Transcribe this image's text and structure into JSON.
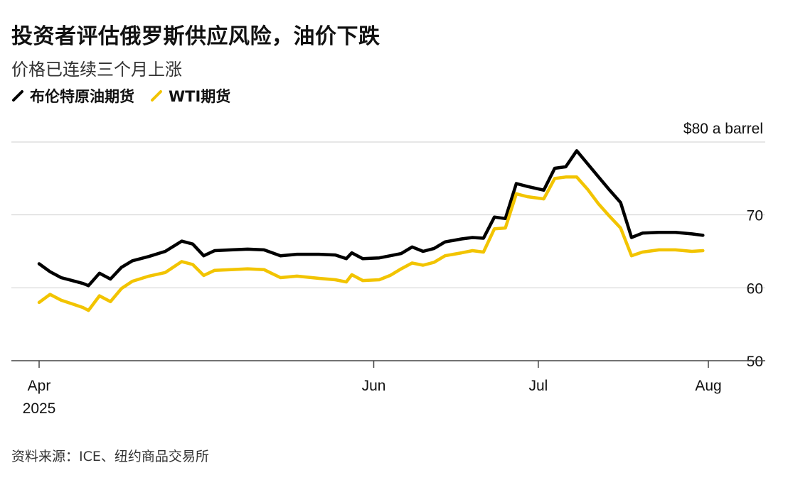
{
  "title": "投资者评估俄罗斯供应风险，油价下跌",
  "subtitle": "价格已连续三个月上涨",
  "source": "资料来源：ICE、纽约商品交易所",
  "colors": {
    "brent": "#000000",
    "wti": "#f2c400",
    "grid": "#cfcfcf",
    "axis": "#444444"
  },
  "chart_data": {
    "type": "line",
    "title": "投资者评估俄罗斯供应风险，油价下跌",
    "subtitle": "价格已连续三个月上涨",
    "ylabel_unit": "$80 a barrel",
    "ylim": [
      50,
      80
    ],
    "yticks": [
      50,
      60,
      70,
      80
    ],
    "ytick_labels": [
      "50",
      "60",
      "70",
      "$80 a barrel"
    ],
    "xlim": [
      "2025-04-01",
      "2025-08-08"
    ],
    "xticks": [
      {
        "date": "2025-04-01",
        "label": "Apr",
        "sublabel": "2025"
      },
      {
        "date": "2025-06-01",
        "label": "Jun",
        "sublabel": ""
      },
      {
        "date": "2025-07-01",
        "label": "Jul",
        "sublabel": ""
      },
      {
        "date": "2025-08-01",
        "label": "Aug",
        "sublabel": ""
      }
    ],
    "grid": true,
    "legend_position": "top-left",
    "series": [
      {
        "name": "布伦特原油期货",
        "color": "#000000",
        "points": [
          [
            "2025-04-01",
            63.3
          ],
          [
            "2025-04-03",
            62.2
          ],
          [
            "2025-04-05",
            61.4
          ],
          [
            "2025-04-07",
            61.0
          ],
          [
            "2025-04-09",
            60.6
          ],
          [
            "2025-04-10",
            60.3
          ],
          [
            "2025-04-12",
            62.0
          ],
          [
            "2025-04-14",
            61.2
          ],
          [
            "2025-04-16",
            62.8
          ],
          [
            "2025-04-18",
            63.7
          ],
          [
            "2025-04-21",
            64.3
          ],
          [
            "2025-04-24",
            65.0
          ],
          [
            "2025-04-27",
            66.4
          ],
          [
            "2025-04-29",
            66.0
          ],
          [
            "2025-05-01",
            64.4
          ],
          [
            "2025-05-03",
            65.1
          ],
          [
            "2025-05-06",
            65.2
          ],
          [
            "2025-05-09",
            65.3
          ],
          [
            "2025-05-12",
            65.2
          ],
          [
            "2025-05-15",
            64.4
          ],
          [
            "2025-05-18",
            64.6
          ],
          [
            "2025-05-22",
            64.6
          ],
          [
            "2025-05-25",
            64.5
          ],
          [
            "2025-05-27",
            64.0
          ],
          [
            "2025-05-28",
            64.8
          ],
          [
            "2025-05-30",
            64.0
          ],
          [
            "2025-06-02",
            64.1
          ],
          [
            "2025-06-04",
            64.4
          ],
          [
            "2025-06-06",
            64.7
          ],
          [
            "2025-06-08",
            65.6
          ],
          [
            "2025-06-10",
            65.0
          ],
          [
            "2025-06-12",
            65.4
          ],
          [
            "2025-06-14",
            66.3
          ],
          [
            "2025-06-17",
            66.7
          ],
          [
            "2025-06-19",
            66.9
          ],
          [
            "2025-06-21",
            66.8
          ],
          [
            "2025-06-23",
            69.7
          ],
          [
            "2025-06-25",
            69.5
          ],
          [
            "2025-06-27",
            74.3
          ],
          [
            "2025-06-29",
            73.9
          ],
          [
            "2025-07-02",
            73.4
          ],
          [
            "2025-07-04",
            76.4
          ],
          [
            "2025-07-06",
            76.6
          ],
          [
            "2025-07-08",
            78.8
          ],
          [
            "2025-07-10",
            77.0
          ],
          [
            "2025-07-12",
            75.2
          ],
          [
            "2025-07-14",
            73.4
          ],
          [
            "2025-07-16",
            71.7
          ],
          [
            "2025-07-18",
            66.9
          ],
          [
            "2025-07-20",
            67.5
          ],
          [
            "2025-07-23",
            67.6
          ],
          [
            "2025-07-26",
            67.6
          ],
          [
            "2025-07-29",
            67.4
          ],
          [
            "2025-07-31",
            67.2
          ]
        ]
      },
      {
        "name": "WTI期货",
        "color": "#f2c400",
        "points": [
          [
            "2025-04-01",
            58.0
          ],
          [
            "2025-04-03",
            59.1
          ],
          [
            "2025-04-05",
            58.3
          ],
          [
            "2025-04-07",
            57.8
          ],
          [
            "2025-04-09",
            57.3
          ],
          [
            "2025-04-10",
            56.9
          ],
          [
            "2025-04-12",
            58.9
          ],
          [
            "2025-04-14",
            58.1
          ],
          [
            "2025-04-16",
            59.9
          ],
          [
            "2025-04-18",
            60.9
          ],
          [
            "2025-04-21",
            61.6
          ],
          [
            "2025-04-24",
            62.1
          ],
          [
            "2025-04-27",
            63.6
          ],
          [
            "2025-04-29",
            63.2
          ],
          [
            "2025-05-01",
            61.7
          ],
          [
            "2025-05-03",
            62.4
          ],
          [
            "2025-05-06",
            62.5
          ],
          [
            "2025-05-09",
            62.6
          ],
          [
            "2025-05-12",
            62.5
          ],
          [
            "2025-05-15",
            61.4
          ],
          [
            "2025-05-18",
            61.6
          ],
          [
            "2025-05-22",
            61.3
          ],
          [
            "2025-05-25",
            61.1
          ],
          [
            "2025-05-27",
            60.8
          ],
          [
            "2025-05-28",
            61.8
          ],
          [
            "2025-05-30",
            61.0
          ],
          [
            "2025-06-02",
            61.1
          ],
          [
            "2025-06-04",
            61.7
          ],
          [
            "2025-06-06",
            62.6
          ],
          [
            "2025-06-08",
            63.4
          ],
          [
            "2025-06-10",
            63.1
          ],
          [
            "2025-06-12",
            63.5
          ],
          [
            "2025-06-14",
            64.4
          ],
          [
            "2025-06-17",
            64.8
          ],
          [
            "2025-06-19",
            65.1
          ],
          [
            "2025-06-21",
            64.9
          ],
          [
            "2025-06-23",
            68.1
          ],
          [
            "2025-06-25",
            68.2
          ],
          [
            "2025-06-27",
            72.9
          ],
          [
            "2025-06-29",
            72.5
          ],
          [
            "2025-07-02",
            72.2
          ],
          [
            "2025-07-04",
            75.0
          ],
          [
            "2025-07-06",
            75.2
          ],
          [
            "2025-07-08",
            75.2
          ],
          [
            "2025-07-10",
            73.5
          ],
          [
            "2025-07-12",
            71.5
          ],
          [
            "2025-07-14",
            69.8
          ],
          [
            "2025-07-16",
            68.2
          ],
          [
            "2025-07-18",
            64.4
          ],
          [
            "2025-07-20",
            64.9
          ],
          [
            "2025-07-23",
            65.2
          ],
          [
            "2025-07-26",
            65.2
          ],
          [
            "2025-07-29",
            65.0
          ],
          [
            "2025-07-31",
            65.1
          ]
        ]
      }
    ]
  }
}
